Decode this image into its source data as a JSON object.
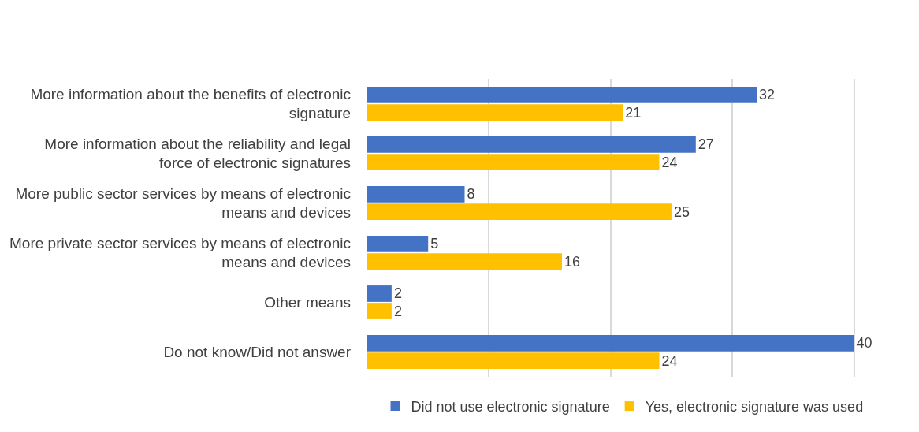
{
  "chart_data": {
    "type": "bar",
    "orientation": "horizontal",
    "categories": [
      "More information about the benefits of electronic signature",
      "More information about the reliability and legal force of electronic signatures",
      "More public sector services by means of electronic means and devices",
      "More private sector services by means of electronic means and devices",
      "Other means",
      "Do not know/Did not answer"
    ],
    "series": [
      {
        "name": "Did not use electronic signature",
        "color": "#4472c4",
        "values": [
          32,
          27,
          8,
          5,
          2,
          40
        ]
      },
      {
        "name": "Yes, electronic signature was used",
        "color": "#ffc000",
        "values": [
          21,
          24,
          25,
          16,
          2,
          24
        ]
      }
    ],
    "grid": "x",
    "legend": "bottom",
    "data_labels": true
  }
}
